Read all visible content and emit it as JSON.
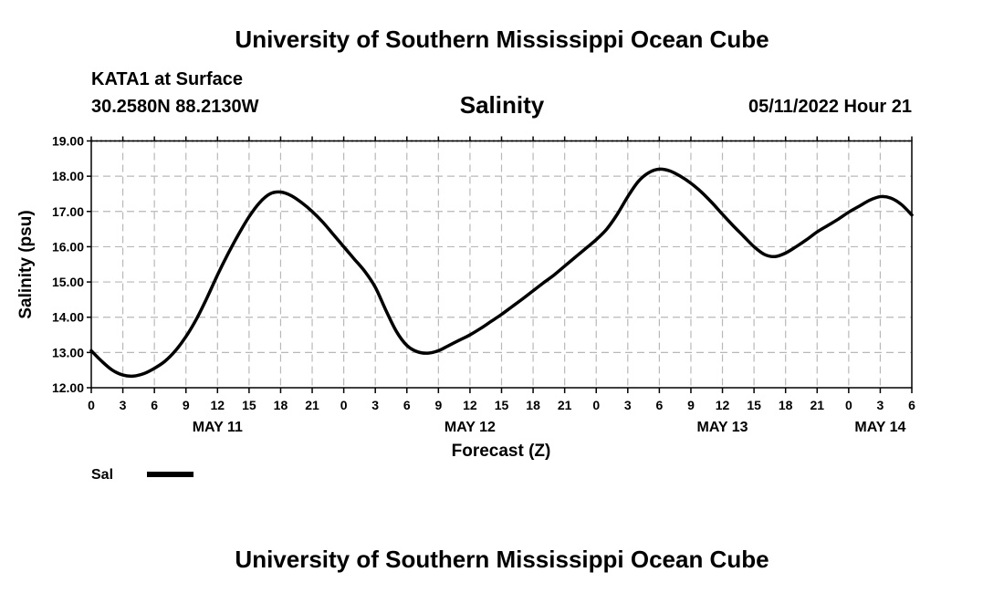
{
  "header": {
    "top_title": "University of Southern Mississippi Ocean Cube",
    "station": "KATA1 at Surface",
    "coordinates": "30.2580N  88.2130W",
    "chart_title": "Salinity",
    "datetime": "05/11/2022 Hour 21"
  },
  "footer": {
    "bottom_title": "University of Southern Mississippi Ocean Cube"
  },
  "chart_data": {
    "type": "line",
    "title": "Salinity",
    "xlabel": "Forecast (Z)",
    "ylabel": "Salinity (psu)",
    "ylim": [
      12.0,
      19.0
    ],
    "xlim": [
      0,
      78
    ],
    "y_ticks": [
      "12.00",
      "13.00",
      "14.00",
      "15.00",
      "16.00",
      "17.00",
      "18.00",
      "19.00"
    ],
    "x_tick_hours": [
      0,
      3,
      6,
      9,
      12,
      15,
      18,
      21,
      24,
      27,
      30,
      33,
      36,
      39,
      42,
      45,
      48,
      51,
      54,
      57,
      60,
      63,
      66,
      69,
      72,
      75,
      78
    ],
    "x_tick_labels": [
      "0",
      "3",
      "6",
      "9",
      "12",
      "15",
      "18",
      "21",
      "0",
      "3",
      "6",
      "9",
      "12",
      "15",
      "18",
      "21",
      "0",
      "3",
      "6",
      "9",
      "12",
      "15",
      "18",
      "21",
      "0",
      "3",
      "6"
    ],
    "date_labels": [
      {
        "hour": 12,
        "label": "MAY 11"
      },
      {
        "hour": 36,
        "label": "MAY 12"
      },
      {
        "hour": 60,
        "label": "MAY 13"
      },
      {
        "hour": 75,
        "label": "MAY 14"
      }
    ],
    "grid": true,
    "legend": {
      "position": "bottom-left",
      "entries": [
        {
          "name": "Sal",
          "color": "#000000"
        }
      ]
    },
    "series": [
      {
        "name": "Sal",
        "color": "#000000",
        "x": [
          0,
          1,
          2,
          3,
          4,
          5,
          6,
          7,
          8,
          9,
          10,
          11,
          12,
          13,
          14,
          15,
          16,
          17,
          18,
          19,
          20,
          21,
          22,
          23,
          24,
          25,
          26,
          27,
          28,
          29,
          30,
          31,
          32,
          33,
          34,
          35,
          36,
          37,
          38,
          39,
          40,
          41,
          42,
          43,
          44,
          45,
          46,
          47,
          48,
          49,
          50,
          51,
          52,
          53,
          54,
          55,
          56,
          57,
          58,
          59,
          60,
          61,
          62,
          63,
          64,
          65,
          66,
          67,
          68,
          69,
          70,
          71,
          72,
          73,
          74,
          75,
          76,
          77,
          78
        ],
        "values": [
          13.05,
          12.75,
          12.5,
          12.36,
          12.33,
          12.4,
          12.55,
          12.75,
          13.05,
          13.45,
          13.95,
          14.55,
          15.2,
          15.8,
          16.35,
          16.85,
          17.25,
          17.5,
          17.55,
          17.45,
          17.25,
          17.0,
          16.7,
          16.35,
          16.0,
          15.65,
          15.3,
          14.85,
          14.2,
          13.6,
          13.2,
          13.02,
          12.98,
          13.05,
          13.2,
          13.35,
          13.5,
          13.68,
          13.88,
          14.08,
          14.3,
          14.52,
          14.75,
          14.98,
          15.2,
          15.45,
          15.7,
          15.95,
          16.2,
          16.5,
          16.92,
          17.42,
          17.85,
          18.1,
          18.2,
          18.15,
          18.0,
          17.8,
          17.55,
          17.25,
          16.92,
          16.6,
          16.3,
          16.0,
          15.78,
          15.72,
          15.82,
          16.0,
          16.2,
          16.42,
          16.6,
          16.78,
          16.98,
          17.15,
          17.32,
          17.42,
          17.38,
          17.2,
          16.9
        ]
      }
    ]
  }
}
